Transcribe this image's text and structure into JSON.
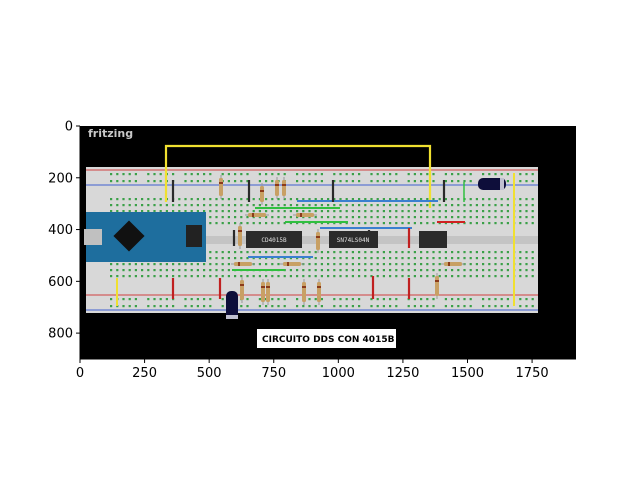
{
  "figure": {
    "watermark": "fritzing",
    "caption": "CIRCUITO DDS CON 4015B",
    "chip_left_label": "CD4015B",
    "chip_right_label": "SN74LS04N"
  },
  "axes": {
    "x_ticks": [
      "0",
      "250",
      "500",
      "750",
      "1000",
      "1250",
      "1500",
      "1750"
    ],
    "y_ticks": [
      "0",
      "200",
      "400",
      "600",
      "800"
    ],
    "x_range": [
      0,
      1920
    ],
    "y_range": [
      0,
      900
    ]
  },
  "colors": {
    "background": "#000000",
    "breadboard": "#d8d8d8",
    "arduino": "#1e6e9e",
    "wire_yellow": "#f0e030",
    "wire_blue": "#3a7fd0",
    "wire_green": "#30c040",
    "wire_red": "#d02020",
    "chip": "#2b2b2b"
  }
}
